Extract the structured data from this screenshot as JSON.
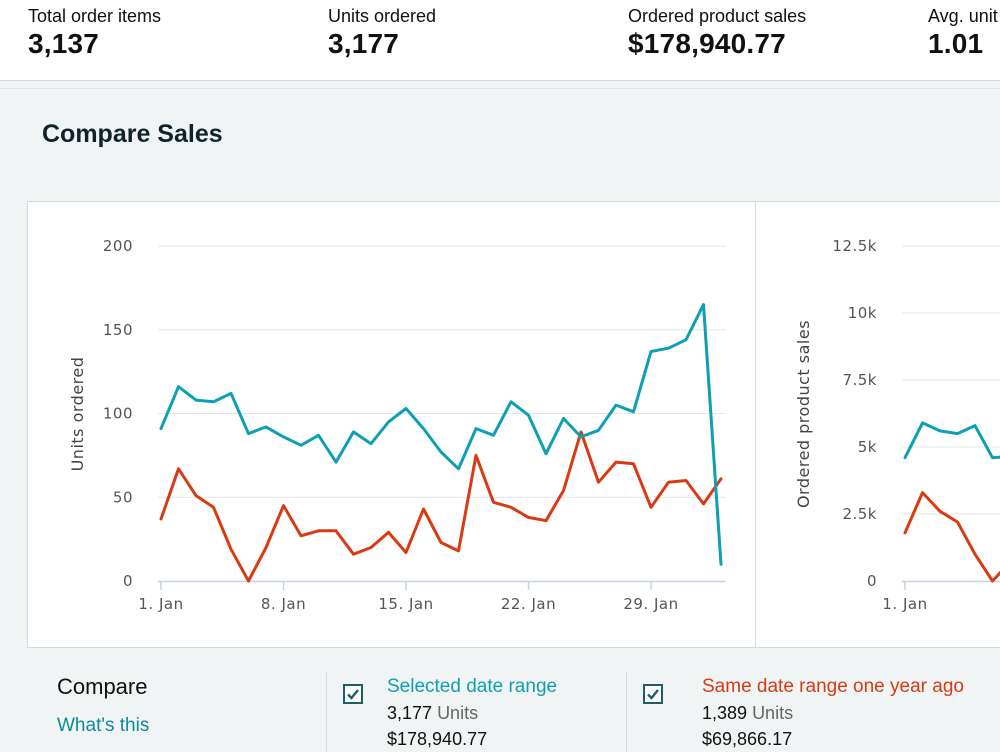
{
  "metrics": [
    {
      "label": "Total order items",
      "value": "3,137"
    },
    {
      "label": "Units ordered",
      "value": "3,177"
    },
    {
      "label": "Ordered product sales",
      "value": "$178,940.77"
    },
    {
      "label": "Avg. unit",
      "value": "1.01"
    }
  ],
  "section_title": "Compare Sales",
  "colors": {
    "selected": "#0f9fb3",
    "previous": "#d93a12",
    "grid": "#e3e6e6",
    "axis": "#c5d2e6"
  },
  "chart_data": [
    {
      "type": "line",
      "ylabel": "Units ordered",
      "ylim": [
        0,
        200
      ],
      "y_ticks": [
        "0",
        "50",
        "100",
        "150",
        "200"
      ],
      "x_ticks": [
        "1. Jan",
        "8. Jan",
        "15. Jan",
        "22. Jan",
        "29. Jan"
      ],
      "x_start_day": 1,
      "series": [
        {
          "name": "Selected date range",
          "color": "#0f9fb3",
          "values": [
            91,
            116,
            108,
            107,
            112,
            88,
            92,
            86,
            81,
            87,
            71,
            89,
            82,
            95,
            103,
            91,
            77,
            67,
            91,
            87,
            107,
            99,
            76,
            97,
            86,
            90,
            105,
            101,
            137,
            139,
            144,
            165,
            10
          ]
        },
        {
          "name": "Same date range one year ago",
          "color": "#d93a12",
          "values": [
            37,
            67,
            51,
            44,
            19,
            0,
            20,
            45,
            27,
            30,
            30,
            16,
            20,
            29,
            17,
            43,
            23,
            18,
            75,
            47,
            44,
            38,
            36,
            54,
            89,
            59,
            71,
            70,
            44,
            59,
            60,
            46,
            61
          ]
        }
      ]
    },
    {
      "type": "line",
      "ylabel": "Ordered product sales",
      "ylim": [
        0,
        12500
      ],
      "y_ticks": [
        "0",
        "2.5k",
        "5k",
        "7.5k",
        "10k",
        "12.5k"
      ],
      "x_ticks": [
        "1. Jan"
      ],
      "x_start_day": 1,
      "series": [
        {
          "name": "Selected date range",
          "color": "#0f9fb3",
          "values": [
            4600,
            5900,
            5600,
            5500,
            5800,
            4600,
            4650
          ]
        },
        {
          "name": "Same date range one year ago",
          "color": "#d93a12",
          "values": [
            1800,
            3300,
            2600,
            2200,
            1000,
            0,
            700
          ]
        }
      ]
    }
  ],
  "compare": {
    "title": "Compare",
    "whats_this": "What's this",
    "selected": {
      "label": "Selected date range",
      "units_value": "3,177",
      "units_word": "Units",
      "sales": "$178,940.77"
    },
    "previous": {
      "label": "Same date range one year ago",
      "units_value": "1,389",
      "units_word": "Units",
      "sales": "$69,866.17"
    }
  }
}
